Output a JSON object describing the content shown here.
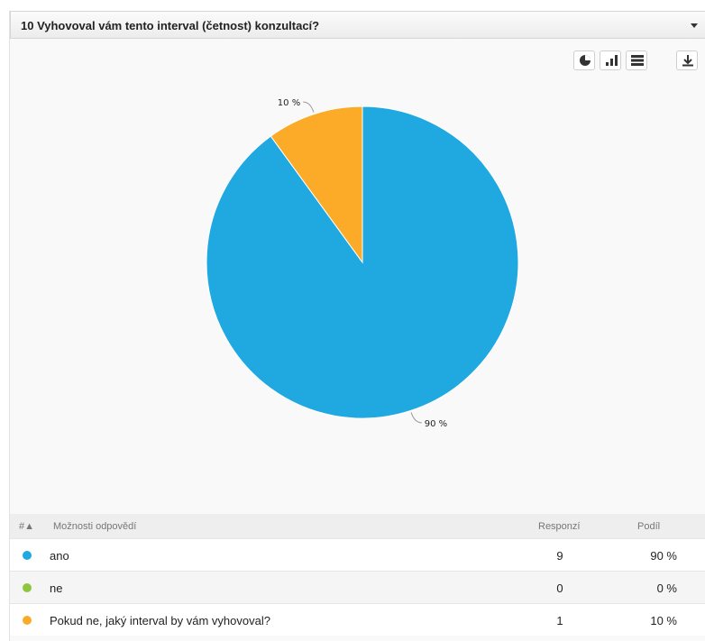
{
  "question": {
    "title": "10 Vyhovoval vám tento interval (četnost) konzultací?"
  },
  "toolbar": {
    "buttons": [
      {
        "icon": "pie-chart-icon"
      },
      {
        "icon": "bar-chart-icon"
      },
      {
        "icon": "table-icon"
      },
      {
        "icon": "download-icon"
      }
    ]
  },
  "chart_data": {
    "type": "pie",
    "slices": [
      {
        "label": "ano",
        "value": 90,
        "display": "90 %",
        "color": "#20a9e1"
      },
      {
        "label": "ne",
        "value": 0,
        "display": "0 %",
        "color": "#8dc63f"
      },
      {
        "label": "Pokud ne, jaký interval by vám vyhovoval?",
        "value": 10,
        "display": "10 %",
        "color": "#fbab27"
      }
    ]
  },
  "table": {
    "headers": {
      "index": "#▲",
      "options": "Možnosti odpovědí",
      "responses": "Responzí",
      "share": "Podíl"
    },
    "rows": [
      {
        "label": "ano",
        "responses": "9",
        "share": "90 %",
        "color": "#20a9e1"
      },
      {
        "label": "ne",
        "responses": "0",
        "share": "0 %",
        "color": "#8dc63f"
      },
      {
        "label": "Pokud ne, jaký interval by vám vyhovoval?",
        "responses": "1",
        "share": "10 %",
        "color": "#fbab27"
      }
    ]
  }
}
